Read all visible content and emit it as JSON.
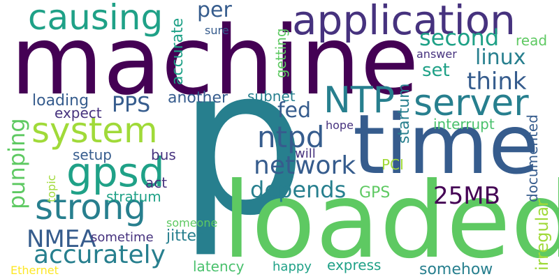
{
  "words": {
    "p": "p",
    "machine": "machine",
    "time": "time",
    "loaded": "loaded",
    "application": "application",
    "causing": "causing",
    "system": "system",
    "strong": "strong",
    "gpsd": "gpsd",
    "server": "server",
    "NTP": "NTP",
    "network": "network",
    "ntpd": "ntpd",
    "depends": "depends",
    "accurately": "accurately",
    "NMEA": "NMEA",
    "25MB": "25MB",
    "second": "second",
    "linux": "linux",
    "think": "think",
    "set": "set",
    "fed": "fed",
    "PPS": "PPS",
    "per": "per",
    "punping": "punping",
    "irregular": "irregular",
    "accurate": "accurate",
    "getting": "getting",
    "startum": "startum",
    "documented": "documented",
    "loading": "loading",
    "another": "another",
    "subnet": "subnet",
    "expect": "expect",
    "setup": "setup",
    "bus": "bus",
    "act": "act",
    "stratum": "stratum",
    "GPS": "GPS",
    "PCI": "PCI",
    "will": "will",
    "hope": "hope",
    "interrupt": "interrupt",
    "read": "read",
    "answer": "answer",
    "sure": "sure",
    "topic": "topic",
    "someone": "someone",
    "sometime": "sometime",
    "jitter": "jitter",
    "latency": "latency",
    "happy": "happy",
    "express": "express",
    "somehow": "somehow",
    "Ethernet": "Ethernet"
  },
  "colors": {
    "dark_purple": "#440154",
    "indigo": "#46327e",
    "slate_blue": "#365c8d",
    "steel_blue": "#277f8e",
    "teal": "#1fa187",
    "green": "#4ac16d",
    "light_green": "#5ec962",
    "lime": "#a0da39",
    "yellow": "#fde725"
  }
}
